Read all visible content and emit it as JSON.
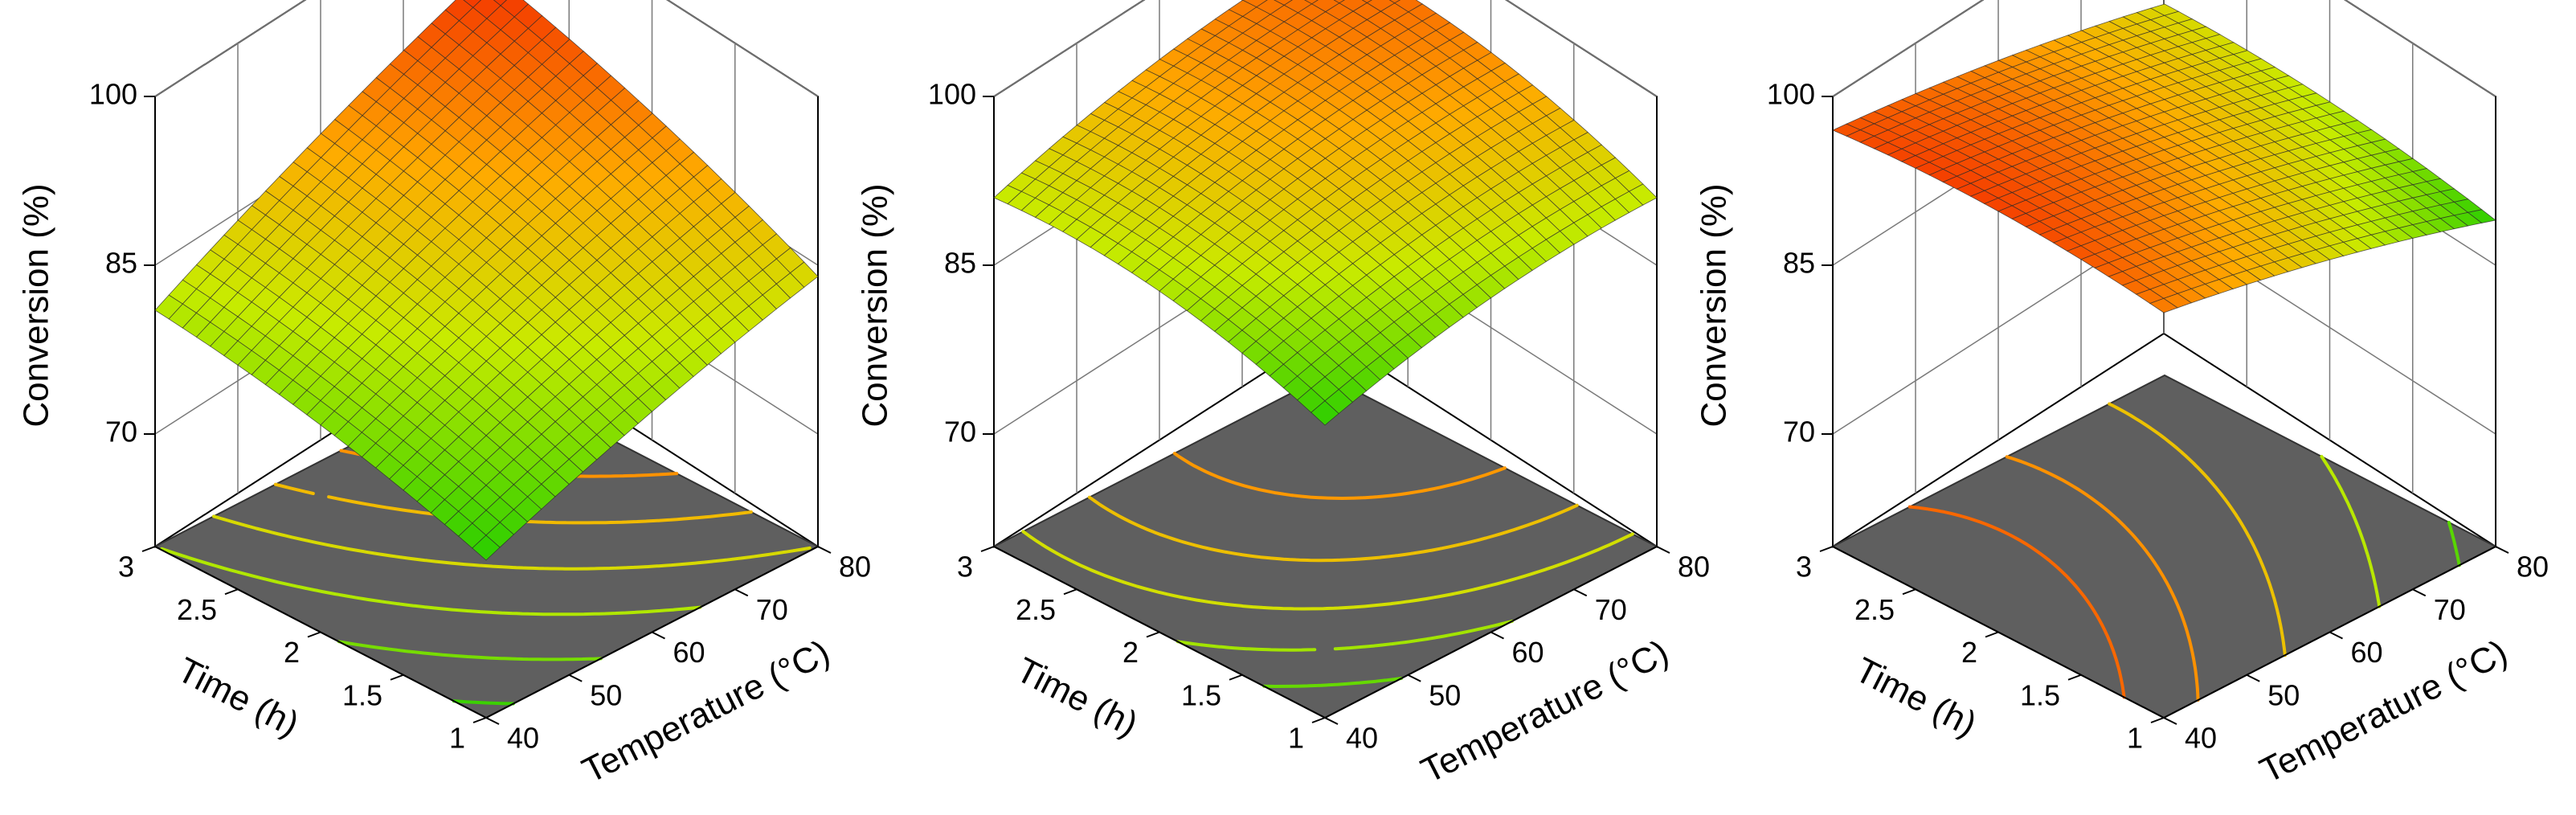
{
  "chart_data": [
    {
      "type": "surface3d",
      "title": "",
      "zlabel": "Conversion (%)",
      "xlabel": "Time (h)",
      "ylabel": "Temperature (°C)",
      "z_ticks": [
        "70",
        "85",
        "100"
      ],
      "x_ticks": [
        "1",
        "1.5",
        "2",
        "2.5",
        "3"
      ],
      "y_ticks": [
        "40",
        "50",
        "60",
        "70",
        "80"
      ],
      "zlim": [
        60,
        100
      ],
      "xlim": [
        1,
        3
      ],
      "ylim": [
        40,
        80
      ],
      "corners": {
        "t1_T40": 74,
        "t1_T80": 84,
        "t3_T40": 81,
        "t3_T80": 96
      },
      "curvature": 1.5,
      "contours": [
        75,
        78,
        81,
        84,
        87,
        90
      ]
    },
    {
      "type": "surface3d",
      "title": "",
      "zlabel": "Conversion (%)",
      "xlabel": "Time (h)",
      "ylabel": "Temperature (°C)",
      "z_ticks": [
        "70",
        "85",
        "100"
      ],
      "x_ticks": [
        "1",
        "1.5",
        "2",
        "2.5",
        "3"
      ],
      "y_ticks": [
        "40",
        "50",
        "60",
        "70",
        "80"
      ],
      "zlim": [
        60,
        100
      ],
      "xlim": [
        1,
        3
      ],
      "ylim": [
        40,
        80
      ],
      "corners": {
        "t1_T40": 86,
        "t1_T80": 91,
        "t3_T40": 91,
        "t3_T80": 98
      },
      "curvature": 3,
      "contours": [
        88,
        90,
        92,
        94,
        96
      ]
    },
    {
      "type": "surface3d",
      "title": "",
      "zlabel": "Conversion (%)",
      "xlabel": "Time (h)",
      "ylabel": "Temperature (°C)",
      "z_ticks": [
        "70",
        "85",
        "100"
      ],
      "x_ticks": [
        "1",
        "1.5",
        "2",
        "2.5",
        "3"
      ],
      "y_ticks": [
        "40",
        "50",
        "60",
        "70",
        "80"
      ],
      "zlim": [
        60,
        100
      ],
      "xlim": [
        1,
        3
      ],
      "ylim": [
        40,
        80
      ],
      "corners": {
        "t1_T40": 96,
        "t1_T80": 89,
        "t3_T40": 97,
        "t3_T80": 93
      },
      "curvature": 1.5,
      "contours": [
        90,
        92,
        94,
        95.5,
        96.5
      ]
    }
  ],
  "colors": {
    "floor": "#5f5f5f",
    "grid": "#7a7a7a",
    "mesh": "#2a2a2a"
  }
}
